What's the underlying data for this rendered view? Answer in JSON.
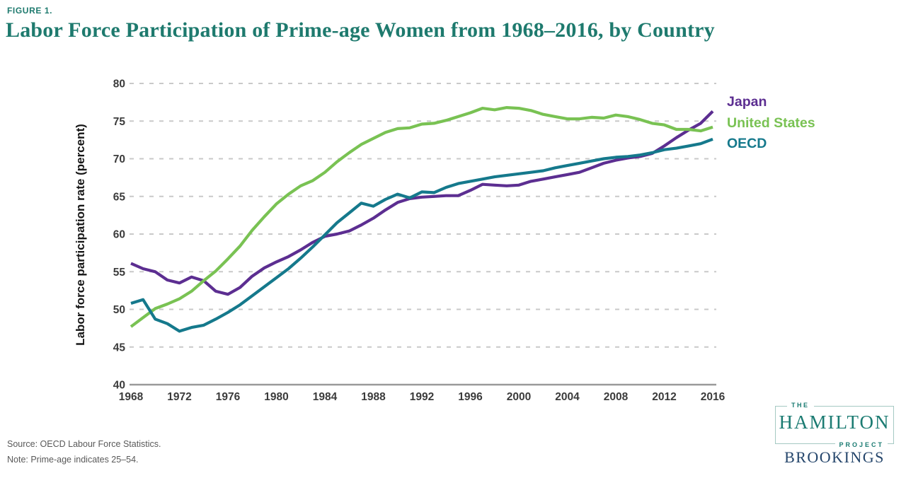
{
  "header": {
    "figure_label": "FIGURE 1.",
    "title": "Labor Force Participation of Prime-age Women from 1968–2016, by Country"
  },
  "chart_data": {
    "type": "line",
    "title": "Labor Force Participation of Prime-age Women from 1968–2016, by Country",
    "xlabel": "",
    "ylabel": "Labor force participation rate (percent)",
    "x_range": [
      1968,
      2016
    ],
    "ylim": [
      40,
      80
    ],
    "yticks": [
      40,
      45,
      50,
      55,
      60,
      65,
      70,
      75,
      80
    ],
    "x_label_ticks": [
      1968,
      1972,
      1976,
      1980,
      1984,
      1988,
      1992,
      1996,
      2000,
      2004,
      2008,
      2012,
      2016
    ],
    "grid": "horizontal dashed gray lines at each y tick; solid gray baseline at 40",
    "legend_position": "right of line endpoints, stacked vertically",
    "years": [
      1968,
      1969,
      1970,
      1971,
      1972,
      1973,
      1974,
      1975,
      1976,
      1977,
      1978,
      1979,
      1980,
      1981,
      1982,
      1983,
      1984,
      1985,
      1986,
      1987,
      1988,
      1989,
      1990,
      1991,
      1992,
      1993,
      1994,
      1995,
      1996,
      1997,
      1998,
      1999,
      2000,
      2001,
      2002,
      2003,
      2004,
      2005,
      2006,
      2007,
      2008,
      2009,
      2010,
      2011,
      2012,
      2013,
      2014,
      2015,
      2016
    ],
    "series": [
      {
        "name": "Japan",
        "color": "#5C2E91",
        "values": [
          56.1,
          55.4,
          55.0,
          53.9,
          53.5,
          54.3,
          53.8,
          52.4,
          52.0,
          52.9,
          54.4,
          55.5,
          56.3,
          57.0,
          57.9,
          58.9,
          59.7,
          60.0,
          60.4,
          61.2,
          62.1,
          63.2,
          64.2,
          64.7,
          64.9,
          65.0,
          65.1,
          65.1,
          65.8,
          66.6,
          66.5,
          66.4,
          66.5,
          67.0,
          67.3,
          67.6,
          67.9,
          68.2,
          68.8,
          69.4,
          69.8,
          70.1,
          70.3,
          70.7,
          71.7,
          72.8,
          73.8,
          74.7,
          76.3
        ]
      },
      {
        "name": "United States",
        "color": "#79C253",
        "values": [
          47.7,
          48.9,
          50.1,
          50.7,
          51.4,
          52.4,
          53.8,
          55.1,
          56.7,
          58.4,
          60.5,
          62.3,
          64.0,
          65.3,
          66.4,
          67.1,
          68.2,
          69.6,
          70.8,
          71.9,
          72.7,
          73.5,
          74.0,
          74.1,
          74.6,
          74.7,
          75.1,
          75.6,
          76.1,
          76.7,
          76.5,
          76.8,
          76.7,
          76.4,
          75.9,
          75.6,
          75.3,
          75.3,
          75.5,
          75.4,
          75.8,
          75.6,
          75.2,
          74.7,
          74.5,
          73.9,
          73.9,
          73.7,
          74.2
        ]
      },
      {
        "name": "OECD",
        "color": "#15798C",
        "values": [
          50.8,
          51.3,
          48.7,
          48.1,
          47.1,
          47.6,
          47.9,
          48.7,
          49.6,
          50.6,
          51.8,
          53.0,
          54.2,
          55.4,
          56.8,
          58.3,
          59.9,
          61.5,
          62.8,
          64.1,
          63.7,
          64.6,
          65.3,
          64.8,
          65.6,
          65.5,
          66.2,
          66.7,
          67.0,
          67.3,
          67.6,
          67.8,
          68.0,
          68.2,
          68.4,
          68.8,
          69.1,
          69.4,
          69.7,
          70.0,
          70.2,
          70.3,
          70.5,
          70.8,
          71.2,
          71.4,
          71.7,
          72.0,
          72.6
        ]
      }
    ]
  },
  "footer": {
    "source": "Source: OECD Labour Force Statistics.",
    "note": "Note: Prime-age indicates 25–54.",
    "logo": {
      "the": "THE",
      "hamilton": "HAMILTON",
      "project": "PROJECT",
      "brookings": "BROOKINGS"
    }
  },
  "colors": {
    "title_teal": "#1E7A6E",
    "hamilton_teal": "#1B7B72",
    "brookings_navy": "#24456B",
    "grid_gray": "#C9C9C9",
    "axis_gray": "#999999",
    "tick_text": "#3B3B3B"
  }
}
